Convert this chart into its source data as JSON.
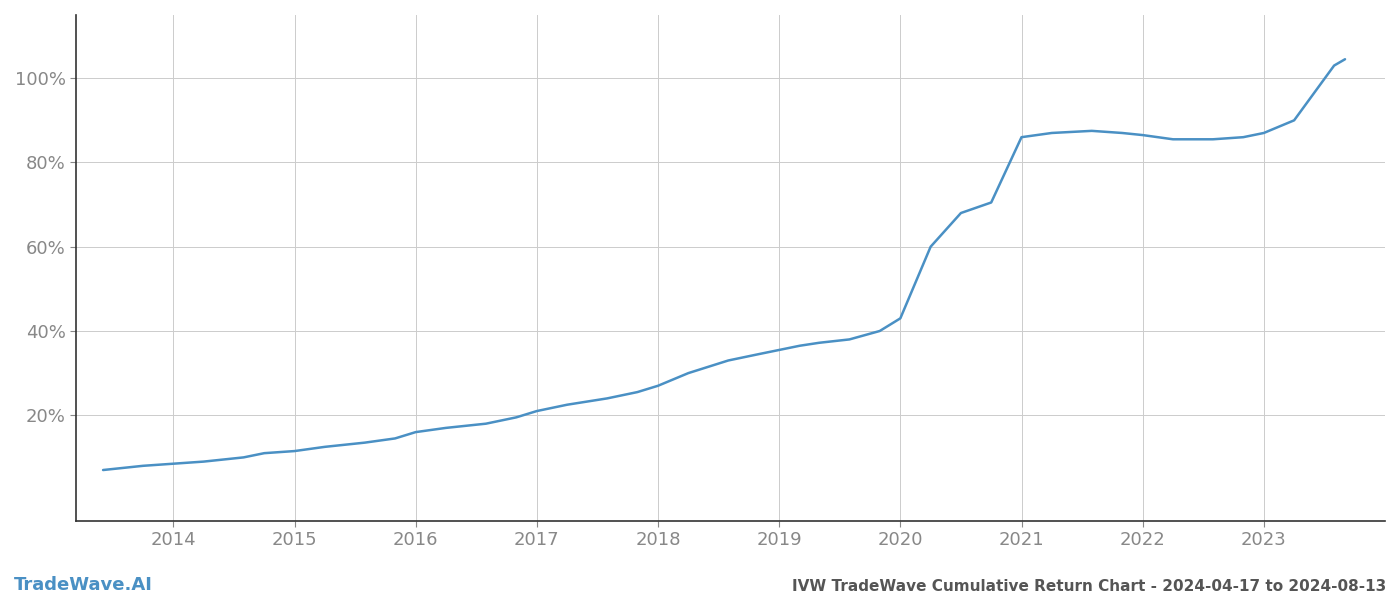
{
  "title": "IVW TradeWave Cumulative Return Chart - 2024-04-17 to 2024-08-13",
  "watermark": "TradeWave.AI",
  "line_color": "#4a90c4",
  "background_color": "#ffffff",
  "grid_color": "#cccccc",
  "x_years": [
    2014,
    2015,
    2016,
    2017,
    2018,
    2019,
    2020,
    2021,
    2022,
    2023
  ],
  "x_data": [
    2013.42,
    2013.75,
    2014.0,
    2014.25,
    2014.58,
    2014.75,
    2015.0,
    2015.25,
    2015.58,
    2015.83,
    2016.0,
    2016.25,
    2016.58,
    2016.83,
    2017.0,
    2017.25,
    2017.58,
    2017.83,
    2018.0,
    2018.25,
    2018.58,
    2018.83,
    2019.0,
    2019.17,
    2019.33,
    2019.58,
    2019.83,
    2020.0,
    2020.25,
    2020.5,
    2020.75,
    2021.0,
    2021.25,
    2021.58,
    2021.83,
    2022.0,
    2022.25,
    2022.58,
    2022.83,
    2023.0,
    2023.25,
    2023.58,
    2023.67
  ],
  "y_data": [
    7.0,
    8.0,
    8.5,
    9.0,
    10.0,
    11.0,
    11.5,
    12.5,
    13.5,
    14.5,
    16.0,
    17.0,
    18.0,
    19.5,
    21.0,
    22.5,
    24.0,
    25.5,
    27.0,
    30.0,
    33.0,
    34.5,
    35.5,
    36.5,
    37.2,
    38.0,
    40.0,
    43.0,
    60.0,
    68.0,
    70.5,
    86.0,
    87.0,
    87.5,
    87.0,
    86.5,
    85.5,
    85.5,
    86.0,
    87.0,
    90.0,
    103.0,
    104.5
  ],
  "ytick_values": [
    20,
    40,
    60,
    80,
    100
  ],
  "ytick_labels": [
    "20%",
    "40%",
    "60%",
    "80%",
    "100%"
  ],
  "xlim": [
    2013.2,
    2024.0
  ],
  "ylim": [
    -5,
    115
  ],
  "title_fontsize": 11,
  "tick_fontsize": 13,
  "watermark_fontsize": 13,
  "line_width": 1.8,
  "tick_color": "#888888",
  "spine_color": "#333333",
  "title_color": "#555555",
  "watermark_color": "#4a90c4"
}
